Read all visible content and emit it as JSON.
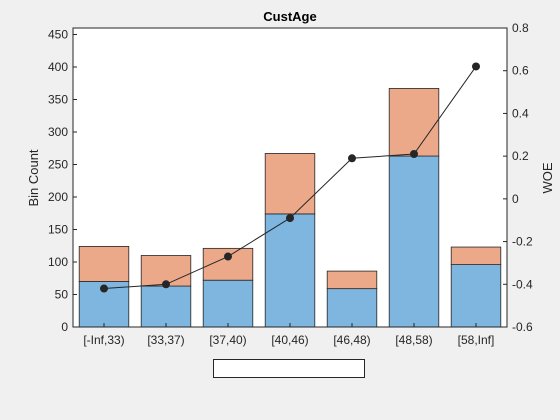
{
  "chart_data": {
    "type": "bar",
    "title": "CustAge",
    "xlabel": "",
    "ylabel": "Bin Count",
    "y2label": "WOE",
    "categories": [
      "[-Inf,33)",
      "[33,37)",
      "[37,40)",
      "[40,46)",
      "[46,48)",
      "[48,58)",
      "[58,Inf]"
    ],
    "stacked": true,
    "series": [
      {
        "values": [
          70,
          63,
          72,
          174,
          59,
          263,
          96
        ],
        "color": "#7eb6df"
      },
      {
        "values": [
          54,
          47,
          49,
          93,
          27,
          104,
          27
        ],
        "color": "#eba98a"
      }
    ],
    "line_series": {
      "axis": "right",
      "values": [
        -0.42,
        -0.4,
        -0.27,
        -0.09,
        0.19,
        0.21,
        0.62
      ],
      "color": "#262626",
      "marker": "filled-circle"
    },
    "ylim": [
      0,
      460
    ],
    "yticks": [
      0,
      50,
      100,
      150,
      200,
      250,
      300,
      350,
      400,
      450
    ],
    "y2lim": [
      -0.6,
      0.8
    ],
    "y2ticks": [
      -0.6,
      -0.4,
      -0.2,
      0,
      0.2,
      0.4,
      0.6,
      0.8
    ],
    "y2ticklabels": [
      "-0.6",
      "-0.4",
      "-0.2",
      "0",
      "0.2",
      "0.4",
      "0.6",
      "0.8"
    ],
    "grid": false,
    "legend": "bottom"
  }
}
